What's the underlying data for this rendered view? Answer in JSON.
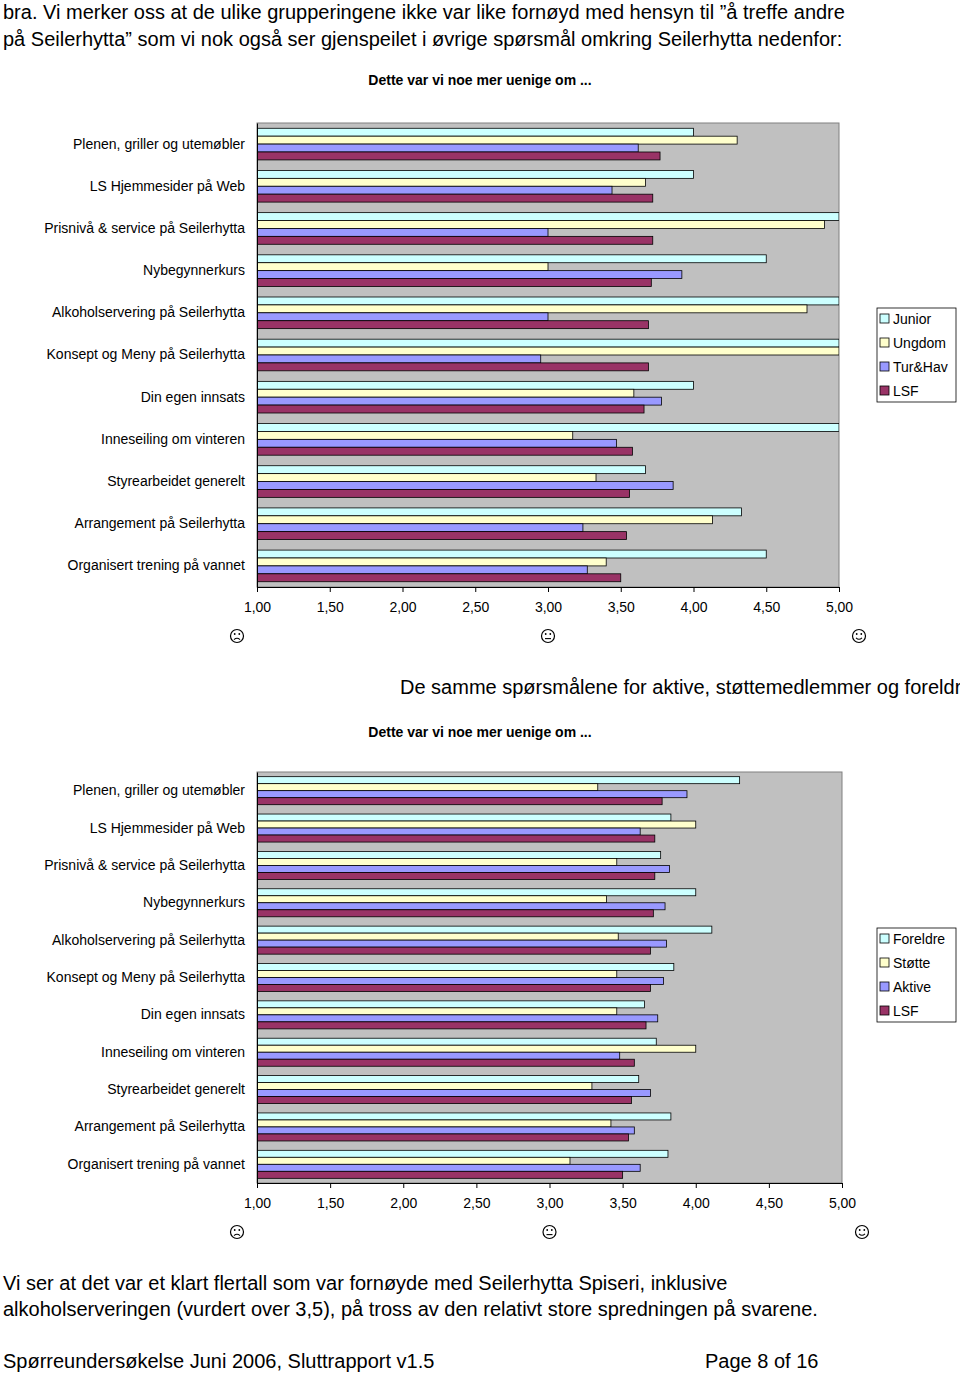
{
  "document": {
    "intro": [
      "bra. Vi merker oss at de ulike grupperingene ikke var like fornøyd med hensyn til ”å treffe andre",
      "på Seilerhytta” som vi nok også ser gjenspeilet i øvrige spørsmål omkring Seilerhytta nedenfor:"
    ],
    "between": "De samme spørsmålene for aktive, støttemedlemmer og foreldre med seilende barn:",
    "conclusion": [
      "Vi ser at det var et klart flertall som var fornøyde med Seilerhytta Spiseri, inklusive",
      "alkoholserveringen (vurdert over 3,5), på tross av den relativt store spredningen på svarene."
    ],
    "footer_left": "Spørreundersøkelse Juni 2006, Sluttrapport v1.5",
    "footer_right": "Page 8 of 16"
  },
  "chart_data": [
    {
      "type": "bar",
      "orientation": "horizontal",
      "title": "Dette var vi noe mer uenige om ...",
      "categories": [
        "Plenen, griller og utemøbler",
        "LS Hjemmesider på Web",
        "Prisnivå & service på Seilerhytta",
        "Nybegynnerkurs",
        "Alkoholservering på Seilerhytta",
        "Konsept og Meny på Seilerhytta",
        "Din egen innsats",
        "Inneseiling om vinteren",
        "Styrearbeidet generelt",
        "Arrangement på Seilerhytta",
        "Organisert trening på vannet"
      ],
      "series": [
        {
          "name": "Junior",
          "color": "#ccffff",
          "values": [
            4.0,
            4.0,
            5.0,
            4.5,
            5.0,
            5.0,
            4.0,
            5.0,
            3.67,
            4.33,
            4.5
          ]
        },
        {
          "name": "Ungdom",
          "color": "#ffffcc",
          "values": [
            4.3,
            3.67,
            4.9,
            3.0,
            4.78,
            5.0,
            3.59,
            3.17,
            3.33,
            4.13,
            3.4
          ]
        },
        {
          "name": "Tur&Hav",
          "color": "#9999ff",
          "values": [
            3.62,
            3.44,
            3.0,
            3.92,
            3.0,
            2.95,
            3.78,
            3.47,
            3.86,
            3.24,
            3.27
          ]
        },
        {
          "name": "LSF",
          "color": "#993366",
          "values": [
            3.77,
            3.72,
            3.72,
            3.71,
            3.69,
            3.69,
            3.66,
            3.58,
            3.56,
            3.54,
            3.5
          ]
        }
      ],
      "xlim": [
        1,
        5
      ],
      "xticks": [
        {
          "value": 1,
          "label": "1,00"
        },
        {
          "value": 1.5,
          "label": "1,50"
        },
        {
          "value": 2,
          "label": "2,00"
        },
        {
          "value": 2.5,
          "label": "2,50"
        },
        {
          "value": 3,
          "label": "3,00"
        },
        {
          "value": 3.5,
          "label": "3,50"
        },
        {
          "value": 4,
          "label": "4,00"
        },
        {
          "value": 4.5,
          "label": "4,50"
        },
        {
          "value": 5,
          "label": "5,00"
        }
      ],
      "grid": false,
      "legend": "right"
    },
    {
      "type": "bar",
      "orientation": "horizontal",
      "title": "Dette var vi noe mer uenige om ...",
      "categories": [
        "Plenen, griller og utemøbler",
        "LS Hjemmesider på Web",
        "Prisnivå & service på Seilerhytta",
        "Nybegynnerkurs",
        "Alkoholservering på Seilerhytta",
        "Konsept og Meny på Seilerhytta",
        "Din egen innsats",
        "Inneseiling om vinteren",
        "Styrearbeidet generelt",
        "Arrangement på Seilerhytta",
        "Organisert trening på vannet"
      ],
      "series": [
        {
          "name": "Foreldre",
          "color": "#ccffff",
          "values": [
            4.3,
            3.83,
            3.76,
            4.0,
            4.11,
            3.85,
            3.65,
            3.73,
            3.61,
            3.83,
            3.81
          ]
        },
        {
          "name": "Støtte",
          "color": "#ffffcc",
          "values": [
            3.33,
            4.0,
            3.46,
            3.39,
            3.47,
            3.46,
            3.46,
            4.0,
            3.29,
            3.42,
            3.14
          ]
        },
        {
          "name": "Aktive",
          "color": "#9999ff",
          "values": [
            3.94,
            3.62,
            3.82,
            3.79,
            3.8,
            3.78,
            3.74,
            3.48,
            3.69,
            3.58,
            3.62
          ]
        },
        {
          "name": "LSF",
          "color": "#993366",
          "values": [
            3.77,
            3.72,
            3.72,
            3.71,
            3.69,
            3.69,
            3.66,
            3.58,
            3.56,
            3.54,
            3.5
          ]
        }
      ],
      "xlim": [
        1,
        5
      ],
      "xticks": [
        {
          "value": 1,
          "label": "1,00"
        },
        {
          "value": 1.5,
          "label": "1,50"
        },
        {
          "value": 2,
          "label": "2,00"
        },
        {
          "value": 2.5,
          "label": "2,50"
        },
        {
          "value": 3,
          "label": "3,00"
        },
        {
          "value": 3.5,
          "label": "3,50"
        },
        {
          "value": 4,
          "label": "4,00"
        },
        {
          "value": 4.5,
          "label": "4,50"
        },
        {
          "value": 5,
          "label": "5,00"
        }
      ],
      "grid": false,
      "legend": "right"
    }
  ]
}
